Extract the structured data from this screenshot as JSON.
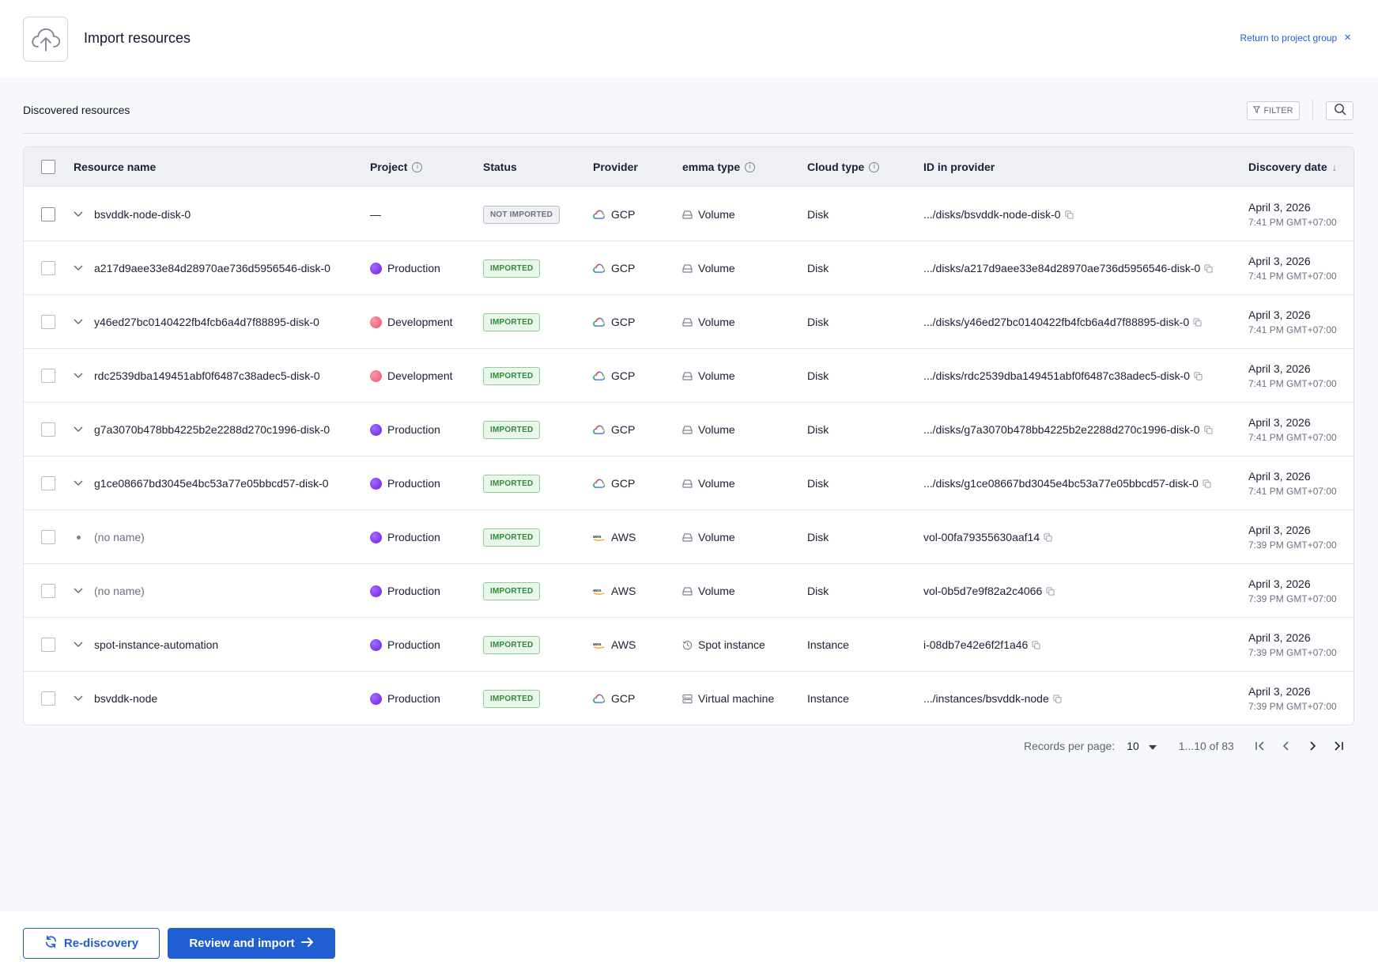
{
  "header": {
    "title": "Import resources",
    "return_label": "Return to project group",
    "close_glyph": "×"
  },
  "section": {
    "title": "Discovered resources",
    "filter_label": "FILTER"
  },
  "columns": {
    "resource_name": "Resource name",
    "project": "Project",
    "status": "Status",
    "provider": "Provider",
    "emma_type": "emma type",
    "cloud_type": "Cloud type",
    "id_in_provider": "ID in provider",
    "discovery_date": "Discovery date"
  },
  "rows": [
    {
      "name": "bsvddk-node-disk-0",
      "project": "—",
      "status": "NOT IMPORTED",
      "provider": "GCP",
      "emma_type": "Volume",
      "cloud_type": "Disk",
      "id": ".../disks/bsvddk-node-disk-0",
      "date": "April 3, 2026",
      "time": "7:41 PM GMT+07:00"
    },
    {
      "name": "a217d9aee33e84d28970ae736d5956546-disk-0",
      "project": "Production",
      "status": "IMPORTED",
      "provider": "GCP",
      "emma_type": "Volume",
      "cloud_type": "Disk",
      "id": ".../disks/a217d9aee33e84d28970ae736d5956546-disk-0",
      "date": "April 3, 2026",
      "time": "7:41 PM GMT+07:00"
    },
    {
      "name": "y46ed27bc0140422fb4fcb6a4d7f88895-disk-0",
      "project": "Development",
      "status": "IMPORTED",
      "provider": "GCP",
      "emma_type": "Volume",
      "cloud_type": "Disk",
      "id": ".../disks/y46ed27bc0140422fb4fcb6a4d7f88895-disk-0",
      "date": "April 3, 2026",
      "time": "7:41 PM GMT+07:00"
    },
    {
      "name": "rdc2539dba149451abf0f6487c38adec5-disk-0",
      "project": "Development",
      "status": "IMPORTED",
      "provider": "GCP",
      "emma_type": "Volume",
      "cloud_type": "Disk",
      "id": ".../disks/rdc2539dba149451abf0f6487c38adec5-disk-0",
      "date": "April 3, 2026",
      "time": "7:41 PM GMT+07:00"
    },
    {
      "name": "g7a3070b478bb4225b2e2288d270c1996-disk-0",
      "project": "Production",
      "status": "IMPORTED",
      "provider": "GCP",
      "emma_type": "Volume",
      "cloud_type": "Disk",
      "id": ".../disks/g7a3070b478bb4225b2e2288d270c1996-disk-0",
      "date": "April 3, 2026",
      "time": "7:41 PM GMT+07:00"
    },
    {
      "name": "g1ce08667bd3045e4bc53a77e05bbcd57-disk-0",
      "project": "Production",
      "status": "IMPORTED",
      "provider": "GCP",
      "emma_type": "Volume",
      "cloud_type": "Disk",
      "id": ".../disks/g1ce08667bd3045e4bc53a77e05bbcd57-disk-0",
      "date": "April 3, 2026",
      "time": "7:41 PM GMT+07:00"
    },
    {
      "name": "(no name)",
      "project": "Production",
      "status": "IMPORTED",
      "provider": "AWS",
      "emma_type": "Volume",
      "cloud_type": "Disk",
      "id": "vol-00fa79355630aaf14",
      "date": "April 3, 2026",
      "time": "7:39 PM GMT+07:00"
    },
    {
      "name": "(no name)",
      "project": "Production",
      "status": "IMPORTED",
      "provider": "AWS",
      "emma_type": "Volume",
      "cloud_type": "Disk",
      "id": "vol-0b5d7e9f82a2c4066",
      "date": "April 3, 2026",
      "time": "7:39 PM GMT+07:00"
    },
    {
      "name": "spot-instance-automation",
      "project": "Production",
      "status": "IMPORTED",
      "provider": "AWS",
      "emma_type": "Spot instance",
      "cloud_type": "Instance",
      "id": "i-08db7e42e6f2f1a46",
      "date": "April 3, 2026",
      "time": "7:39 PM GMT+07:00"
    },
    {
      "name": "bsvddk-node",
      "project": "Production",
      "status": "IMPORTED",
      "provider": "GCP",
      "emma_type": "Virtual machine",
      "cloud_type": "Instance",
      "id": ".../instances/bsvddk-node",
      "date": "April 3, 2026",
      "time": "7:39 PM GMT+07:00"
    }
  ],
  "pagination": {
    "label": "Records per page:",
    "per_page": "10",
    "range": "1...10 of 83"
  },
  "footer": {
    "rediscovery_label": "Re-discovery",
    "review_label": "Review and import"
  },
  "colors": {
    "accent": "#1f5fd1",
    "production": "#7b2ff0",
    "development": "#f0607a",
    "imported": "#2f8a3a"
  }
}
